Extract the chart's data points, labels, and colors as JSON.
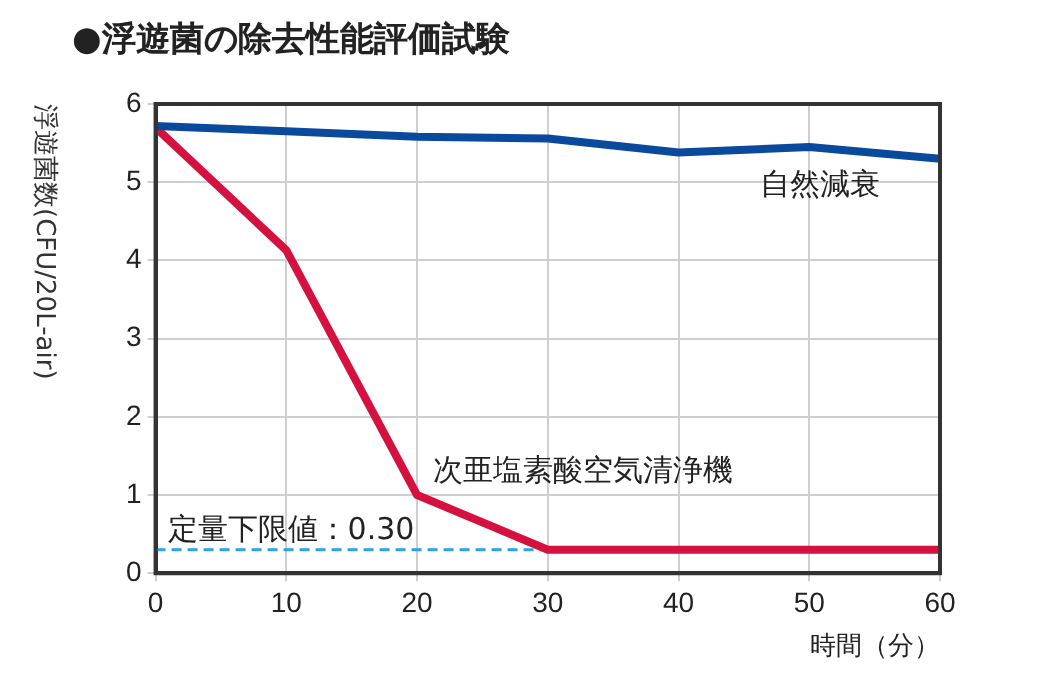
{
  "chart_data": {
    "type": "line",
    "title": "●浮遊菌の除去性能評価試験",
    "xlabel": "時間（分）",
    "ylabel": "浮遊菌数(CFU/20L-air)",
    "x": [
      0,
      10,
      20,
      30,
      40,
      50,
      60
    ],
    "series": [
      {
        "name": "自然減衰",
        "color": "#0a4a9c",
        "values": [
          5.72,
          5.65,
          5.58,
          5.56,
          5.38,
          5.45,
          5.3
        ]
      },
      {
        "name": "次亜塩素酸空気清浄機",
        "color": "#d5123f",
        "values": [
          5.7,
          4.13,
          1.0,
          0.3,
          0.3,
          0.3,
          0.3
        ]
      }
    ],
    "xlim": [
      0,
      60
    ],
    "xticks": [
      0,
      10,
      20,
      30,
      40,
      50,
      60
    ],
    "ylim": [
      0,
      6
    ],
    "yticks": [
      0,
      1,
      2,
      3,
      4,
      5,
      6
    ],
    "ref_lines": [
      {
        "axis": "y",
        "value": 0.3,
        "label": "定量下限値：0.30",
        "color": "#29a3e8",
        "line_style": "dashed"
      }
    ],
    "grid": true,
    "legend": false,
    "marker": "none",
    "line_style": "solid"
  }
}
